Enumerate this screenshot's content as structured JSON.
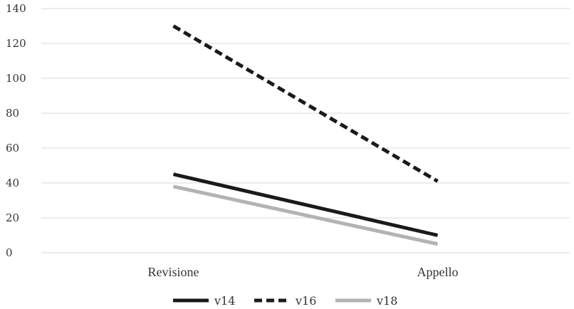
{
  "chart_data": {
    "type": "line",
    "title": "",
    "xlabel": "",
    "ylabel": "",
    "categories": [
      "Revisione",
      "Appello"
    ],
    "ylim": [
      0,
      140
    ],
    "yticks": [
      0,
      20,
      40,
      60,
      80,
      100,
      120,
      140
    ],
    "ytick_labels": [
      "0",
      "20",
      "40",
      "60",
      "80",
      "100",
      "120",
      "140"
    ],
    "grid": true,
    "legend_position": "bottom",
    "series": [
      {
        "name": "v14",
        "values": [
          45,
          10
        ],
        "color": "#1a1a1a",
        "style": "solid"
      },
      {
        "name": "v16",
        "values": [
          130,
          41
        ],
        "color": "#1a1a1a",
        "style": "dashed"
      },
      {
        "name": "v18",
        "values": [
          38,
          5
        ],
        "color": "#b3b3b3",
        "style": "solid"
      }
    ]
  }
}
